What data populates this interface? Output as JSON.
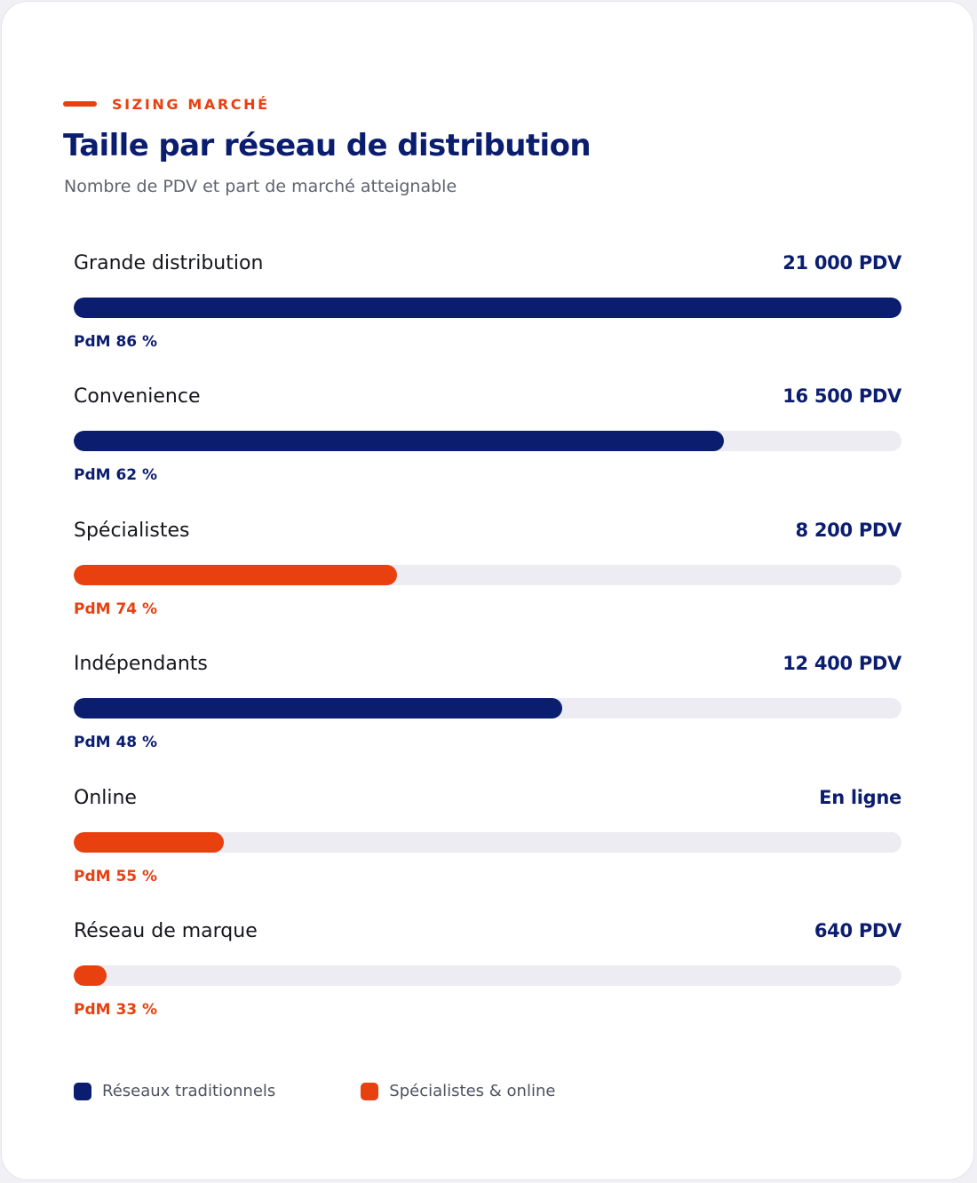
{
  "colors": {
    "traditional": "#0b1d6f",
    "specialist": "#e8400f",
    "track": "#ececf2"
  },
  "header": {
    "eyebrow": "SIZING MARCHÉ",
    "title": "Taille par réseau de distribution",
    "subtitle": "Nombre de PDV et part de marché atteignable"
  },
  "chart_data": {
    "type": "bar",
    "orientation": "horizontal",
    "title": "Taille par réseau de distribution",
    "subtitle": "Nombre de PDV et part de marché atteignable",
    "xlim": [
      0,
      21000
    ],
    "grid": false,
    "legend_position": "bottom-left",
    "categories": [
      "Grande distribution",
      "Convenience",
      "Spécialistes",
      "Indépendants",
      "Online",
      "Réseau de marque"
    ],
    "bars": [
      {
        "label": "Grande distribution",
        "value": 21000,
        "value_label": "21 000 PDV",
        "share_label": "PdM 86 %",
        "group": "traditional"
      },
      {
        "label": "Convenience",
        "value": 16500,
        "value_label": "16 500 PDV",
        "share_label": "PdM 62 %",
        "group": "traditional"
      },
      {
        "label": "Spécialistes",
        "value": 8200,
        "value_label": "8 200 PDV",
        "share_label": "PdM 74 %",
        "group": "specialist"
      },
      {
        "label": "Indépendants",
        "value": 12400,
        "value_label": "12 400 PDV",
        "share_label": "PdM 48 %",
        "group": "traditional"
      },
      {
        "label": "Online",
        "value": 3800,
        "value_label": "En ligne",
        "share_label": "PdM 55 %",
        "group": "specialist"
      },
      {
        "label": "Réseau de marque",
        "value": 640,
        "value_label": "640 PDV",
        "share_label": "PdM 33 %",
        "group": "specialist"
      }
    ],
    "legend": [
      {
        "label": "Réseaux traditionnels",
        "group": "traditional"
      },
      {
        "label": "Spécialistes & online",
        "group": "specialist"
      }
    ]
  }
}
